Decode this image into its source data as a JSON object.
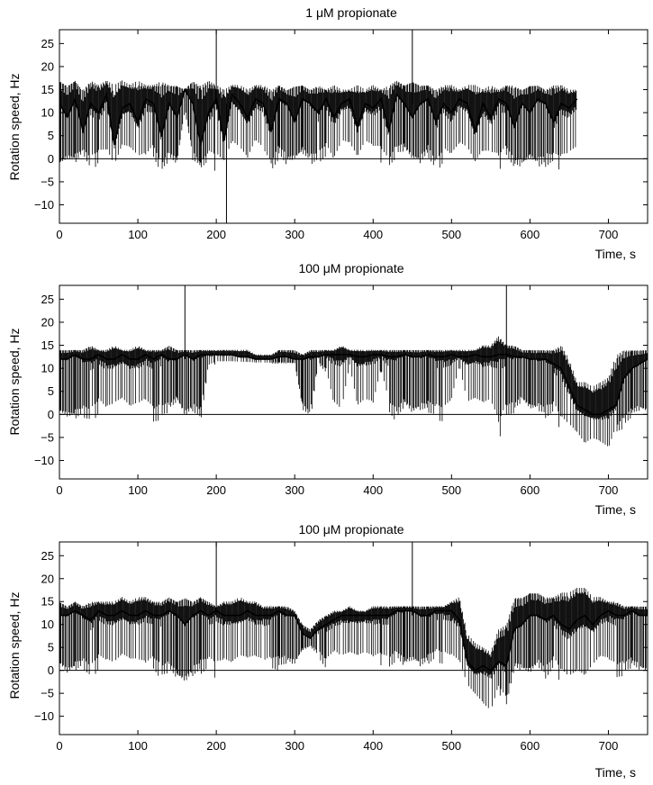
{
  "chart_data": [
    {
      "type": "line",
      "title": "1 μM propionate",
      "xlabel": "Time, s",
      "ylabel": "Rotation speed, Hz",
      "xlim": [
        0,
        750
      ],
      "ylim": [
        -14,
        28
      ],
      "xticks": [
        0,
        100,
        200,
        300,
        400,
        500,
        600,
        700
      ],
      "yticks": [
        -10,
        -5,
        0,
        5,
        10,
        15,
        20,
        25
      ],
      "reference_line_y": 0,
      "series": [
        {
          "x": [
            0,
            10,
            20,
            30,
            40,
            50,
            60,
            70,
            80,
            90,
            100,
            110,
            120,
            130,
            140,
            150,
            160,
            170,
            180,
            190,
            200,
            210,
            220,
            230,
            240,
            250,
            260,
            270,
            280,
            290,
            300,
            310,
            320,
            330,
            340,
            350,
            360,
            370,
            380,
            390,
            400,
            410,
            420,
            430,
            440,
            450,
            460,
            470,
            480,
            490,
            500,
            510,
            520,
            530,
            540,
            550,
            560,
            570,
            580,
            590,
            600,
            610,
            620,
            630,
            640,
            650,
            660
          ],
          "y": [
            12,
            9,
            13,
            6,
            12,
            10,
            14,
            3,
            11,
            12,
            8,
            13,
            12,
            5,
            12,
            9,
            15,
            12,
            3,
            10,
            13,
            4,
            14,
            12,
            9,
            13,
            12,
            6,
            13,
            12,
            8,
            13,
            12,
            10,
            13,
            9,
            12,
            13,
            7,
            12,
            11,
            13,
            6,
            14,
            12,
            9,
            12,
            13,
            8,
            12,
            10,
            13,
            12,
            6,
            12,
            9,
            13,
            12,
            7,
            12,
            10,
            13,
            12,
            8,
            12,
            11,
            13
          ],
          "min": [
            -3,
            -1,
            -2,
            1,
            -3,
            -1,
            -2,
            -3,
            0,
            -1,
            -2,
            -3,
            0,
            -3,
            -1,
            -2,
            10,
            -1,
            -2,
            -1,
            -3,
            -2,
            0,
            -1,
            -3,
            1,
            -1,
            -3,
            0,
            -2,
            -1,
            0,
            -2,
            -1,
            0,
            -3,
            1,
            0,
            -2,
            1,
            0,
            -1,
            -2,
            0,
            1,
            -1,
            -2,
            0,
            -3,
            -1,
            -2,
            0,
            -1,
            -3,
            -2,
            -1,
            -3,
            0,
            -2,
            -3,
            -1,
            -3,
            -2,
            -1,
            -3,
            -2,
            -1
          ],
          "max": [
            17,
            16,
            17,
            15,
            17,
            16,
            17,
            16,
            17,
            16,
            17,
            16,
            16,
            17,
            16,
            16,
            15,
            17,
            16,
            17,
            16,
            15,
            16,
            16,
            15,
            16,
            16,
            15,
            16,
            15,
            16,
            16,
            15,
            16,
            15,
            16,
            15,
            15,
            16,
            15,
            16,
            15,
            16,
            17,
            16,
            17,
            16,
            16,
            15,
            16,
            16,
            15,
            16,
            16,
            15,
            16,
            15,
            16,
            16,
            15,
            16,
            16,
            15,
            16,
            16,
            15,
            15
          ]
        }
      ],
      "spikes": [
        {
          "x": 200,
          "y": 28
        },
        {
          "x": 213,
          "y": -14
        },
        {
          "x": 450,
          "y": 28
        }
      ]
    },
    {
      "type": "line",
      "title": "100 μM propionate",
      "xlabel": "Time, s",
      "ylabel": "Rotation speed, Hz",
      "xlim": [
        0,
        750
      ],
      "ylim": [
        -14,
        28
      ],
      "xticks": [
        0,
        100,
        200,
        300,
        400,
        500,
        600,
        700
      ],
      "yticks": [
        -10,
        -5,
        0,
        5,
        10,
        15,
        20,
        25
      ],
      "reference_line_y": 0,
      "series": [
        {
          "x": [
            0,
            10,
            20,
            30,
            40,
            50,
            60,
            70,
            80,
            90,
            100,
            110,
            120,
            130,
            140,
            150,
            160,
            170,
            180,
            190,
            200,
            210,
            220,
            230,
            240,
            250,
            260,
            270,
            280,
            290,
            300,
            310,
            320,
            330,
            340,
            350,
            360,
            370,
            380,
            390,
            400,
            410,
            420,
            430,
            440,
            450,
            460,
            470,
            480,
            490,
            500,
            510,
            520,
            530,
            540,
            550,
            560,
            570,
            580,
            590,
            600,
            610,
            620,
            630,
            640,
            650,
            660,
            670,
            680,
            690,
            700,
            710,
            720,
            730,
            740,
            750
          ],
          "y": [
            12,
            12,
            13,
            12,
            12,
            13,
            12,
            12,
            13,
            12,
            12,
            13,
            12,
            13,
            12,
            12,
            13,
            12,
            13,
            13,
            13,
            13,
            13,
            12.5,
            12.5,
            12,
            12,
            12,
            12.5,
            12.5,
            12,
            12,
            12.5,
            12.5,
            13,
            13,
            13,
            13,
            12.5,
            12.5,
            13,
            13,
            12.5,
            12.5,
            13,
            12.5,
            12.5,
            13,
            12.5,
            12.5,
            13,
            12.5,
            12.5,
            13,
            12.5,
            12.5,
            13,
            13,
            12.5,
            12.5,
            12,
            12,
            12,
            11,
            10,
            6,
            2,
            1,
            0,
            0,
            1,
            2,
            8,
            10,
            11,
            12
          ],
          "min": [
            -1,
            -2,
            -2,
            -1,
            -2,
            0,
            -2,
            -1,
            0,
            -2,
            -1,
            0,
            -2,
            -1,
            0,
            2,
            -2,
            0,
            -2,
            10,
            11,
            11,
            11,
            11,
            11,
            11,
            11,
            11,
            11,
            11,
            11,
            0,
            -2,
            11,
            9,
            -1,
            -3,
            10,
            -2,
            0,
            -1,
            9,
            0,
            -2,
            1,
            -1,
            0,
            0,
            -1,
            -2,
            0,
            10,
            -1,
            0,
            -1,
            0,
            -6,
            -1,
            0,
            2,
            0,
            0,
            -1,
            0,
            -4,
            -5,
            -6,
            -9,
            -7,
            -8,
            -10,
            -4,
            -3,
            -1,
            0,
            -1
          ],
          "max": [
            14,
            14,
            14,
            14,
            15,
            14,
            14,
            15,
            14,
            14,
            15,
            14,
            14,
            14,
            15,
            14,
            14,
            14,
            14,
            14,
            14,
            14,
            14,
            14,
            14,
            13,
            13,
            13,
            14,
            14,
            14,
            13,
            14,
            14,
            14,
            14,
            15,
            14,
            14,
            14,
            14,
            14,
            14,
            14,
            14,
            14,
            14,
            14,
            14,
            14,
            14,
            14,
            14,
            14,
            15,
            15,
            17,
            15,
            15,
            14,
            14,
            14,
            14,
            14,
            15,
            12,
            7,
            7,
            6,
            7,
            8,
            13,
            14,
            14,
            14,
            14
          ]
        }
      ],
      "spikes": [
        {
          "x": 160,
          "y": 28
        },
        {
          "x": 570,
          "y": 28
        }
      ]
    },
    {
      "type": "line",
      "title": "100 μM propionate",
      "xlabel": "Time, s",
      "ylabel": "Rotation speed, Hz",
      "xlim": [
        0,
        750
      ],
      "ylim": [
        -14,
        28
      ],
      "xticks": [
        0,
        100,
        200,
        300,
        400,
        500,
        600,
        700
      ],
      "yticks": [
        -10,
        -5,
        0,
        5,
        10,
        15,
        20,
        25
      ],
      "reference_line_y": 0,
      "series": [
        {
          "x": [
            0,
            10,
            20,
            30,
            40,
            50,
            60,
            70,
            80,
            90,
            100,
            110,
            120,
            130,
            140,
            150,
            160,
            170,
            180,
            190,
            200,
            210,
            220,
            230,
            240,
            250,
            260,
            270,
            280,
            290,
            300,
            310,
            320,
            330,
            340,
            350,
            360,
            370,
            380,
            390,
            400,
            410,
            420,
            430,
            440,
            450,
            460,
            470,
            480,
            490,
            500,
            510,
            520,
            530,
            540,
            550,
            560,
            570,
            580,
            590,
            600,
            610,
            620,
            630,
            640,
            650,
            660,
            670,
            680,
            690,
            700,
            710,
            720,
            730,
            740,
            750
          ],
          "y": [
            12,
            12,
            13,
            12,
            11,
            13,
            12,
            12,
            13,
            12,
            12,
            13,
            12,
            12,
            13,
            12,
            10,
            12,
            13,
            12,
            13,
            12,
            12,
            12,
            13,
            12,
            12,
            12,
            13,
            12,
            12,
            8,
            7,
            9,
            10,
            11,
            12,
            12,
            12,
            12,
            12,
            12,
            12,
            13,
            13,
            13,
            12,
            12,
            13,
            13,
            13,
            11,
            2,
            0,
            1,
            0,
            2,
            1,
            9,
            10,
            12,
            12,
            11,
            12,
            10,
            9,
            11,
            12,
            10,
            12,
            13,
            12,
            12,
            13,
            12,
            12
          ],
          "min": [
            0,
            -2,
            -1,
            0,
            -2,
            0,
            -1,
            -2,
            0,
            -1,
            -1,
            -2,
            0,
            -2,
            -1,
            -3,
            -4,
            -2,
            -1,
            0,
            -2,
            -1,
            -2,
            0,
            -1,
            0,
            -1,
            0,
            0,
            1,
            0,
            4,
            5,
            3,
            0,
            2,
            0,
            1,
            0,
            1,
            0,
            1,
            0,
            2,
            0,
            1,
            0,
            1,
            2,
            1,
            0,
            -1,
            -5,
            -7,
            -10,
            -12,
            -5,
            -8,
            0,
            -1,
            -2,
            0,
            -2,
            0,
            -3,
            -5,
            -4,
            -6,
            -2,
            0,
            -1,
            -2,
            -1,
            0,
            -1,
            -2
          ],
          "max": [
            15,
            14,
            15,
            14,
            15,
            15,
            15,
            15,
            16,
            15,
            16,
            16,
            15,
            15,
            16,
            15,
            16,
            15,
            16,
            15,
            14,
            15,
            15,
            16,
            15,
            15,
            14,
            14,
            14,
            14,
            13,
            10,
            9,
            11,
            12,
            13,
            13,
            14,
            13,
            13,
            14,
            14,
            14,
            14,
            14,
            14,
            14,
            14,
            14,
            14,
            15,
            16,
            8,
            6,
            5,
            4,
            9,
            10,
            16,
            16,
            17,
            17,
            16,
            16,
            17,
            17,
            18,
            18,
            16,
            16,
            15,
            15,
            14,
            14,
            14,
            14
          ]
        }
      ],
      "spikes": [
        {
          "x": 200,
          "y": 28
        },
        {
          "x": 450,
          "y": 28
        }
      ]
    }
  ]
}
